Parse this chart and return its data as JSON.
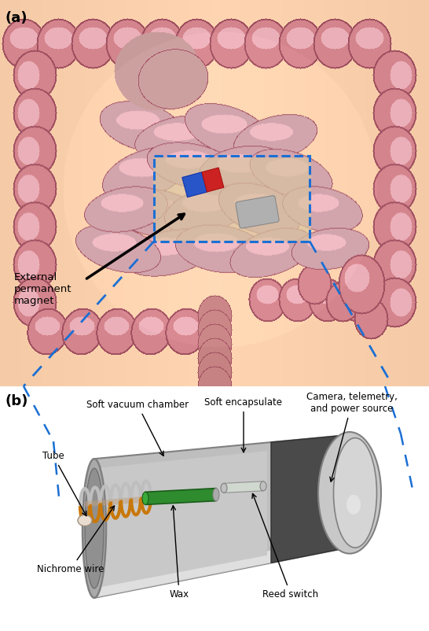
{
  "fig_width": 5.46,
  "fig_height": 8.02,
  "dpi": 100,
  "panel_a_label": "(a)",
  "panel_b_label": "(b)",
  "label_fontsize": 13,
  "annotation_fontsize": 8.5,
  "external_magnet_text": "External\npermanent\nmagnet",
  "panel_b_labels": {
    "soft_vacuum_chamber": "Soft vacuum chamber",
    "soft_encapsulate": "Soft encapsulate",
    "camera": "Camera, telemetry,\nand power source",
    "tube": "Tube",
    "nichrome_wire": "Nichrome wire",
    "wax": "Wax",
    "reed_switch": "Reed switch"
  },
  "blue_box_color": "#1B6FD4",
  "magnet_blue_color": "#2855C8",
  "magnet_red_color": "#CC2222",
  "background_color": "#ffffff",
  "skin_color": "#F5CBA7",
  "colon_color": "#D4848C",
  "colon_edge": "#A05060",
  "colon_highlight": "#EAB0B8",
  "small_int_color": "#CDA0A8",
  "box_fill_color": "#D9C4A0"
}
